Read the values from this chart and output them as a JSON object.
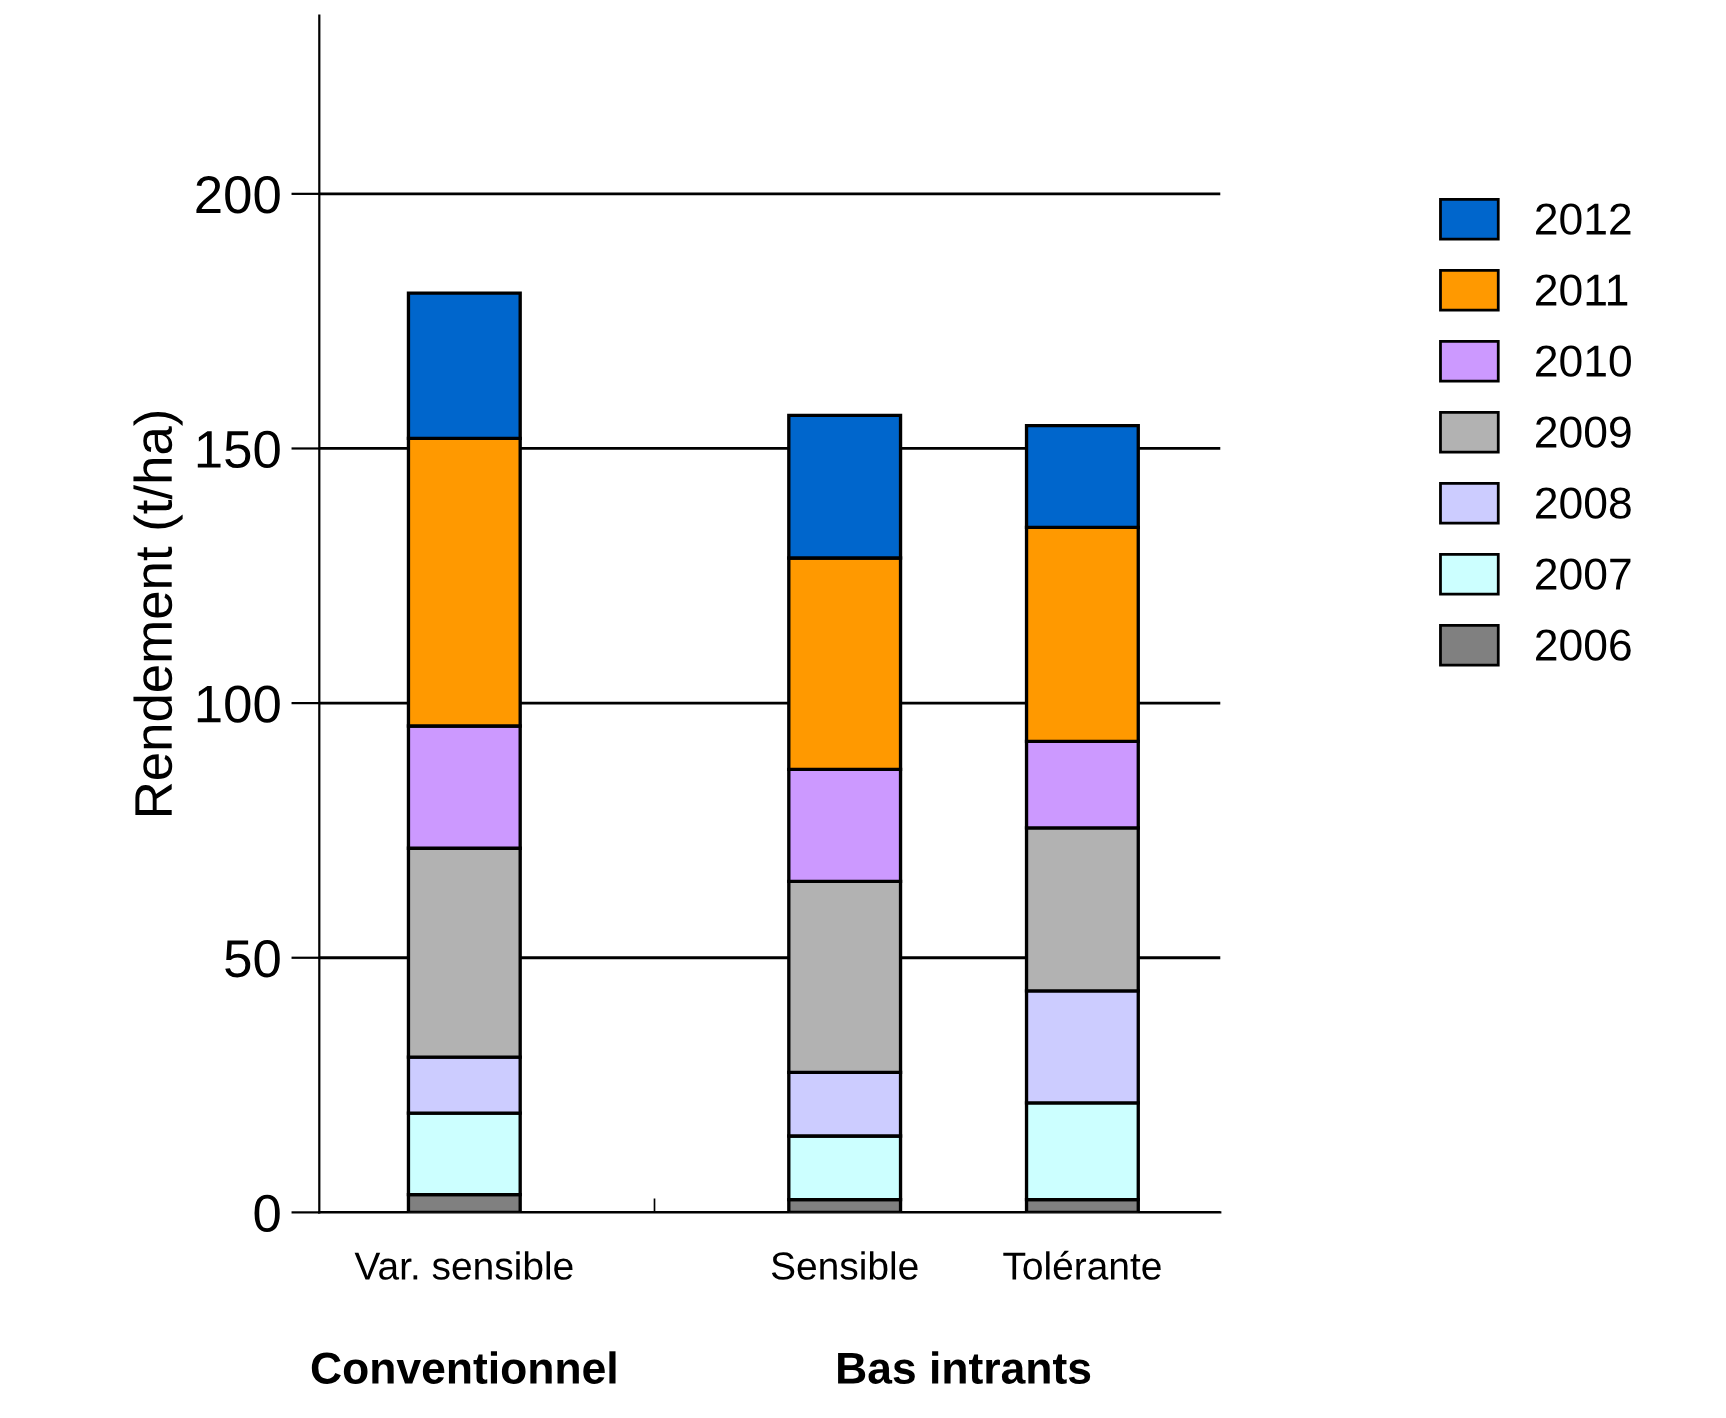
{
  "chart_data": {
    "type": "bar",
    "stacked": true,
    "ylabel": "Rendement (t/ha)",
    "categories": [
      "Var. sensible",
      "Sensible",
      "Tolérante"
    ],
    "series": [
      {
        "name": "2006",
        "color": "#808080",
        "values": [
          3.5,
          2.5,
          2.5
        ]
      },
      {
        "name": "2007",
        "color": "#ccffff",
        "values": [
          16,
          12.5,
          19
        ]
      },
      {
        "name": "2008",
        "color": "#ccccff",
        "values": [
          11,
          12.5,
          22
        ]
      },
      {
        "name": "2009",
        "color": "#b2b2b2",
        "values": [
          41,
          37.5,
          32
        ]
      },
      {
        "name": "2010",
        "color": "#cc99ff",
        "values": [
          24,
          22,
          17
        ]
      },
      {
        "name": "2011",
        "color": "#ff9900",
        "values": [
          56.5,
          41.5,
          42
        ]
      },
      {
        "name": "2012",
        "color": "#0066cc",
        "values": [
          28.5,
          28,
          20
        ]
      }
    ],
    "annotations": [
      "Conventionnel",
      "Bas intrants"
    ],
    "ylim": [
      0,
      235
    ],
    "yticks": [
      0,
      50,
      100,
      150,
      200
    ],
    "grid": "y",
    "legend": "right"
  }
}
